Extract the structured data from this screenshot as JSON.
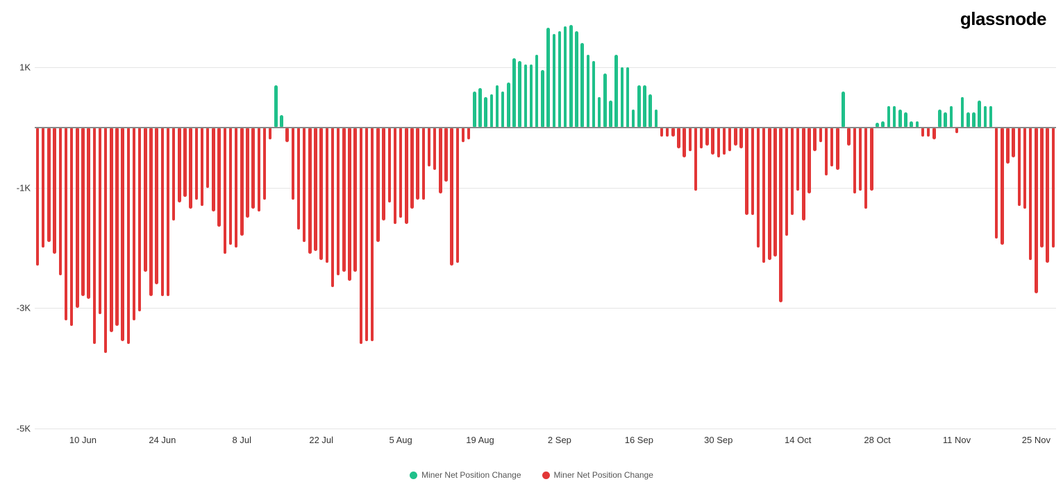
{
  "logo": "glassnode",
  "chart": {
    "type": "bar",
    "ylim": [
      -5000,
      2000
    ],
    "yticks": [
      {
        "value": 1000,
        "label": "1K"
      },
      {
        "value": -1000,
        "label": "-1K"
      },
      {
        "value": -3000,
        "label": "-3K"
      },
      {
        "value": -5000,
        "label": "-5K"
      }
    ],
    "xticks": [
      {
        "idx": 8,
        "label": "10 Jun"
      },
      {
        "idx": 22,
        "label": "24 Jun"
      },
      {
        "idx": 36,
        "label": "8 Jul"
      },
      {
        "idx": 50,
        "label": "22 Jul"
      },
      {
        "idx": 64,
        "label": "5 Aug"
      },
      {
        "idx": 78,
        "label": "19 Aug"
      },
      {
        "idx": 92,
        "label": "2 Sep"
      },
      {
        "idx": 106,
        "label": "16 Sep"
      },
      {
        "idx": 120,
        "label": "30 Sep"
      },
      {
        "idx": 134,
        "label": "14 Oct"
      },
      {
        "idx": 148,
        "label": "28 Oct"
      },
      {
        "idx": 162,
        "label": "11 Nov"
      },
      {
        "idx": 176,
        "label": "25 Nov"
      }
    ],
    "color_positive": "#1fc08a",
    "color_negative": "#e23636",
    "grid_color": "#e5e5e5",
    "baseline_color": "#888888",
    "background_color": "#ffffff",
    "bar_width_ratio": 0.55,
    "label_fontsize": 13,
    "legend": [
      {
        "label": "Miner Net Position Change",
        "color": "#1fc08a"
      },
      {
        "label": "Miner Net Position Change",
        "color": "#e23636"
      }
    ],
    "values": [
      -2300,
      -2000,
      -1900,
      -2100,
      -2450,
      -3200,
      -3300,
      -3000,
      -2800,
      -2850,
      -3600,
      -3100,
      -3750,
      -3400,
      -3300,
      -3550,
      -3600,
      -3200,
      -3050,
      -2400,
      -2800,
      -2600,
      -2800,
      -2800,
      -1550,
      -1250,
      -1150,
      -1350,
      -1200,
      -1300,
      -1000,
      -1400,
      -1650,
      -2100,
      -1950,
      -2000,
      -1800,
      -1500,
      -1350,
      -1400,
      -1200,
      -200,
      700,
      200,
      -250,
      -1200,
      -1700,
      -1900,
      -2100,
      -2050,
      -2200,
      -2250,
      -2650,
      -2450,
      -2400,
      -2550,
      -2400,
      -3600,
      -3550,
      -3550,
      -1900,
      -1550,
      -1250,
      -1600,
      -1500,
      -1600,
      -1350,
      -1200,
      -1200,
      -650,
      -700,
      -1100,
      -900,
      -2300,
      -2250,
      -250,
      -200,
      600,
      650,
      500,
      550,
      700,
      600,
      750,
      1150,
      1100,
      1050,
      1050,
      1200,
      950,
      1650,
      1550,
      1600,
      1680,
      1700,
      1600,
      1400,
      1200,
      1100,
      500,
      900,
      450,
      1200,
      1000,
      1000,
      300,
      700,
      700,
      550,
      300,
      -150,
      -150,
      -150,
      -350,
      -500,
      -400,
      -1050,
      -350,
      -300,
      -450,
      -500,
      -450,
      -400,
      -300,
      -350,
      -1450,
      -1450,
      -2000,
      -2250,
      -2200,
      -2150,
      -2900,
      -1800,
      -1450,
      -1050,
      -1550,
      -1100,
      -400,
      -250,
      -800,
      -650,
      -700,
      600,
      -300,
      -1100,
      -1050,
      -1350,
      -1050,
      80,
      100,
      350,
      350,
      300,
      250,
      100,
      100,
      -150,
      -150,
      -200,
      300,
      250,
      350,
      -100,
      500,
      250,
      250,
      450,
      350,
      350,
      -1850,
      -1950,
      -600,
      -500,
      -1300,
      -1350,
      -2200,
      -2750,
      -2000,
      -2250,
      -2000
    ]
  }
}
